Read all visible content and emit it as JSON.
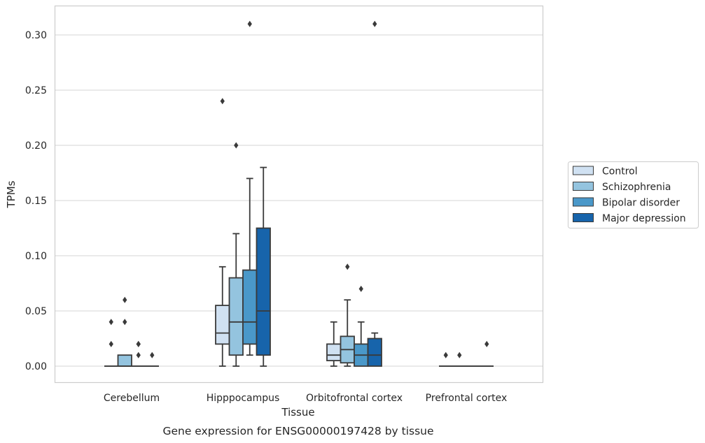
{
  "chart_data": {
    "type": "box",
    "caption": "Gene expression for ENSG00000197428 by tissue",
    "xlabel": "Tissue",
    "ylabel": "TPMs",
    "ylim": [
      -0.015,
      0.325
    ],
    "yticks": [
      0.0,
      0.05,
      0.1,
      0.15,
      0.2,
      0.25,
      0.3
    ],
    "ytick_labels": [
      "0.00",
      "0.05",
      "0.10",
      "0.15",
      "0.20",
      "0.25",
      "0.30"
    ],
    "grid": true,
    "legend_position": "right, outside plot",
    "categories": [
      "Cerebellum",
      "Hipppocampus",
      "Orbitofrontal cortex",
      "Prefrontal cortex"
    ],
    "series": [
      {
        "name": "Control",
        "color": "#d0e1f2",
        "boxes": [
          {
            "min": 0,
            "q1": 0,
            "median": 0,
            "q3": 0,
            "max": 0,
            "outliers": [
              0.04,
              0.02
            ]
          },
          {
            "min": 0,
            "q1": 0.02,
            "median": 0.03,
            "q3": 0.055,
            "max": 0.09,
            "outliers": [
              0.24
            ]
          },
          {
            "min": 0,
            "q1": 0.005,
            "median": 0.01,
            "q3": 0.02,
            "max": 0.04,
            "outliers": []
          },
          {
            "min": 0,
            "q1": 0,
            "median": 0,
            "q3": 0,
            "max": 0,
            "outliers": [
              0.01
            ]
          }
        ]
      },
      {
        "name": "Schizophrenia",
        "color": "#94c4df",
        "boxes": [
          {
            "min": 0,
            "q1": 0,
            "median": 0,
            "q3": 0.01,
            "max": 0.01,
            "outliers": [
              0.06,
              0.04
            ]
          },
          {
            "min": 0,
            "q1": 0.01,
            "median": 0.04,
            "q3": 0.08,
            "max": 0.12,
            "outliers": [
              0.2
            ]
          },
          {
            "min": 0,
            "q1": 0.003,
            "median": 0.015,
            "q3": 0.027,
            "max": 0.06,
            "outliers": [
              0.09
            ]
          },
          {
            "min": 0,
            "q1": 0,
            "median": 0,
            "q3": 0,
            "max": 0,
            "outliers": [
              0.01
            ]
          }
        ]
      },
      {
        "name": "Bipolar disorder",
        "color": "#4a98c9",
        "boxes": [
          {
            "min": 0,
            "q1": 0,
            "median": 0,
            "q3": 0,
            "max": 0,
            "outliers": [
              0.02,
              0.01,
              0.02
            ]
          },
          {
            "min": 0.01,
            "q1": 0.02,
            "median": 0.04,
            "q3": 0.087,
            "max": 0.17,
            "outliers": [
              0.31
            ]
          },
          {
            "min": 0,
            "q1": 0,
            "median": 0.01,
            "q3": 0.02,
            "max": 0.04,
            "outliers": [
              0.07
            ]
          },
          {
            "min": 0,
            "q1": 0,
            "median": 0,
            "q3": 0,
            "max": 0,
            "outliers": []
          }
        ]
      },
      {
        "name": "Major depression",
        "color": "#1764ab",
        "boxes": [
          {
            "min": 0,
            "q1": 0,
            "median": 0,
            "q3": 0,
            "max": 0,
            "outliers": [
              0.01
            ]
          },
          {
            "min": 0,
            "q1": 0.01,
            "median": 0.05,
            "q3": 0.125,
            "max": 0.18,
            "outliers": []
          },
          {
            "min": 0,
            "q1": 0,
            "median": 0.01,
            "q3": 0.025,
            "max": 0.03,
            "outliers": [
              0.31
            ]
          },
          {
            "min": 0,
            "q1": 0,
            "median": 0,
            "q3": 0,
            "max": 0,
            "outliers": [
              0.02
            ]
          }
        ]
      }
    ]
  }
}
